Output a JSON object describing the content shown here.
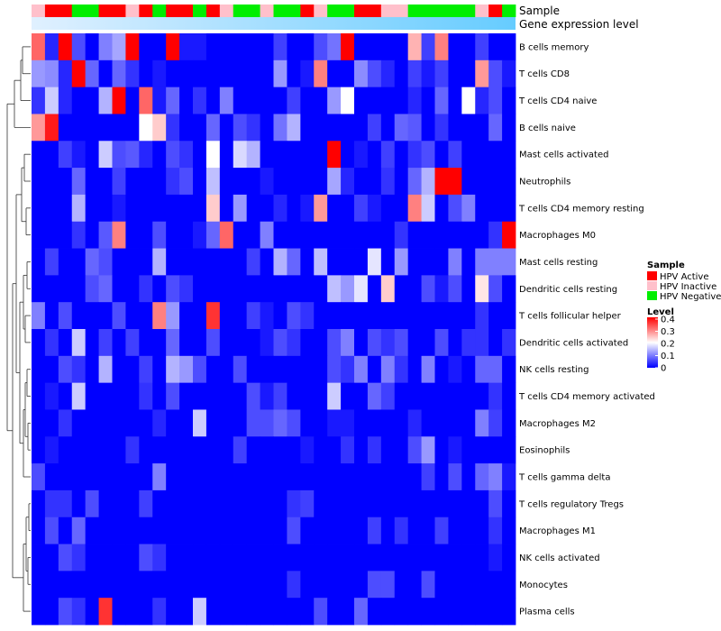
{
  "chart_data": {
    "type": "heatmap",
    "annotation_tracks": [
      "Sample",
      "Gene expression level"
    ],
    "sample_groups": [
      "Inactive",
      "Active",
      "Active",
      "Negative",
      "Negative",
      "Active",
      "Active",
      "Inactive",
      "Active",
      "Negative",
      "Active",
      "Active",
      "Negative",
      "Active",
      "Inactive",
      "Negative",
      "Negative",
      "Inactive",
      "Negative",
      "Negative",
      "Active",
      "Inactive",
      "Negative",
      "Negative",
      "Active",
      "Active",
      "Inactive",
      "Inactive",
      "Negative",
      "Negative",
      "Negative",
      "Negative",
      "Negative",
      "Inactive",
      "Active",
      "Negative"
    ],
    "rows": [
      "B cells memory",
      "T cells CD8",
      "T cells CD4 naive",
      "B cells naive",
      "Mast cells activated",
      "Neutrophils",
      "T cells CD4 memory resting",
      "Macrophages M0",
      "Mast cells resting",
      "Dendritic cells resting",
      "T cells follicular helper",
      "Dendritic cells activated",
      "NK cells resting",
      "T cells CD4 memory activated",
      "Macrophages M2",
      "Eosinophils",
      "T cells gamma delta",
      "T cells regulatory  Tregs",
      "Macrophages M1",
      "NK cells activated",
      "Monocytes",
      "Plasma cells"
    ],
    "values": [
      [
        0.32,
        0.03,
        0.42,
        0.06,
        0.0,
        0.1,
        0.13,
        0.42,
        0.0,
        0.0,
        0.42,
        0.02,
        0.02,
        0.0,
        0.0,
        0.0,
        0.0,
        0.0,
        0.05,
        0.0,
        0.0,
        0.06,
        0.09,
        0.42,
        0.0,
        0.0,
        0.0,
        0.0,
        0.26,
        0.05,
        0.3,
        0.0,
        0.0,
        0.05,
        0.0,
        0.0
      ],
      [
        0.12,
        0.11,
        0.03,
        0.42,
        0.08,
        0.0,
        0.08,
        0.04,
        0.0,
        0.02,
        0.0,
        0.0,
        0.0,
        0.0,
        0.0,
        0.0,
        0.0,
        0.0,
        0.12,
        0.0,
        0.02,
        0.3,
        0.0,
        0.0,
        0.11,
        0.06,
        0.03,
        0.0,
        0.05,
        0.02,
        0.05,
        0.0,
        0.0,
        0.28,
        0.06,
        0.02
      ],
      [
        0.04,
        0.16,
        0.03,
        0.0,
        0.0,
        0.14,
        0.42,
        0.0,
        0.32,
        0.02,
        0.08,
        0.0,
        0.04,
        0.0,
        0.1,
        0.0,
        0.0,
        0.0,
        0.0,
        0.05,
        0.0,
        0.0,
        0.12,
        0.2,
        0.0,
        0.0,
        0.0,
        0.0,
        0.03,
        0.0,
        0.08,
        0.0,
        0.2,
        0.03,
        0.06,
        0.0
      ],
      [
        0.28,
        0.38,
        0.0,
        0.0,
        0.0,
        0.0,
        0.0,
        0.0,
        0.2,
        0.24,
        0.04,
        0.0,
        0.0,
        0.08,
        0.0,
        0.06,
        0.04,
        0.0,
        0.09,
        0.14,
        0.0,
        0.0,
        0.0,
        0.0,
        0.0,
        0.05,
        0.0,
        0.08,
        0.07,
        0.0,
        0.04,
        0.0,
        0.0,
        0.0,
        0.08,
        0.0
      ],
      [
        0.0,
        0.0,
        0.05,
        0.02,
        0.0,
        0.16,
        0.06,
        0.07,
        0.03,
        0.0,
        0.06,
        0.04,
        0.0,
        0.2,
        0.0,
        0.17,
        0.14,
        0.0,
        0.0,
        0.0,
        0.0,
        0.0,
        0.42,
        0.0,
        0.02,
        0.0,
        0.05,
        0.0,
        0.04,
        0.06,
        0.0,
        0.05,
        0.0,
        0.0,
        0.0,
        0.0
      ],
      [
        0.0,
        0.0,
        0.0,
        0.08,
        0.0,
        0.0,
        0.05,
        0.0,
        0.0,
        0.0,
        0.04,
        0.06,
        0.0,
        0.15,
        0.0,
        0.0,
        0.0,
        0.02,
        0.0,
        0.0,
        0.0,
        0.0,
        0.13,
        0.03,
        0.0,
        0.0,
        0.04,
        0.0,
        0.08,
        0.14,
        0.42,
        0.42,
        0.0,
        0.0,
        0.0,
        0.0
      ],
      [
        0.0,
        0.0,
        0.0,
        0.14,
        0.0,
        0.0,
        0.02,
        0.0,
        0.0,
        0.0,
        0.0,
        0.0,
        0.0,
        0.24,
        0.0,
        0.12,
        0.0,
        0.0,
        0.03,
        0.0,
        0.02,
        0.28,
        0.0,
        0.0,
        0.05,
        0.02,
        0.0,
        0.0,
        0.3,
        0.16,
        0.0,
        0.06,
        0.1,
        0.0,
        0.0,
        0.0
      ],
      [
        0.0,
        0.0,
        0.0,
        0.04,
        0.0,
        0.07,
        0.3,
        0.0,
        0.0,
        0.06,
        0.0,
        0.0,
        0.02,
        0.08,
        0.32,
        0.0,
        0.0,
        0.1,
        0.0,
        0.0,
        0.0,
        0.0,
        0.0,
        0.0,
        0.0,
        0.0,
        0.0,
        0.04,
        0.0,
        0.0,
        0.0,
        0.0,
        0.0,
        0.0,
        0.04,
        0.4
      ],
      [
        0.0,
        0.05,
        0.0,
        0.0,
        0.08,
        0.06,
        0.0,
        0.0,
        0.0,
        0.14,
        0.0,
        0.0,
        0.0,
        0.0,
        0.0,
        0.0,
        0.05,
        0.0,
        0.14,
        0.08,
        0.0,
        0.15,
        0.0,
        0.0,
        0.0,
        0.18,
        0.0,
        0.12,
        0.0,
        0.0,
        0.0,
        0.1,
        0.0,
        0.1,
        0.1,
        0.1
      ],
      [
        0.0,
        0.0,
        0.0,
        0.0,
        0.06,
        0.08,
        0.0,
        0.0,
        0.04,
        0.0,
        0.06,
        0.04,
        0.0,
        0.0,
        0.0,
        0.0,
        0.0,
        0.0,
        0.0,
        0.0,
        0.0,
        0.0,
        0.15,
        0.12,
        0.18,
        0.0,
        0.24,
        0.0,
        0.0,
        0.06,
        0.02,
        0.06,
        0.0,
        0.22,
        0.06,
        0.0
      ],
      [
        0.1,
        0.0,
        0.06,
        0.0,
        0.0,
        0.0,
        0.06,
        0.0,
        0.0,
        0.3,
        0.12,
        0.0,
        0.0,
        0.36,
        0.0,
        0.0,
        0.05,
        0.02,
        0.0,
        0.06,
        0.04,
        0.0,
        0.0,
        0.0,
        0.0,
        0.0,
        0.0,
        0.0,
        0.0,
        0.0,
        0.0,
        0.0,
        0.0,
        0.04,
        0.0,
        0.0
      ],
      [
        0.0,
        0.04,
        0.0,
        0.16,
        0.0,
        0.05,
        0.0,
        0.05,
        0.0,
        0.0,
        0.08,
        0.0,
        0.0,
        0.06,
        0.0,
        0.0,
        0.0,
        0.02,
        0.06,
        0.04,
        0.0,
        0.0,
        0.06,
        0.1,
        0.0,
        0.06,
        0.04,
        0.06,
        0.0,
        0.0,
        0.06,
        0.0,
        0.04,
        0.04,
        0.0,
        0.04
      ],
      [
        0.0,
        0.0,
        0.06,
        0.04,
        0.0,
        0.14,
        0.0,
        0.0,
        0.05,
        0.0,
        0.14,
        0.12,
        0.06,
        0.0,
        0.0,
        0.06,
        0.0,
        0.0,
        0.0,
        0.0,
        0.0,
        0.0,
        0.06,
        0.04,
        0.1,
        0.0,
        0.1,
        0.04,
        0.0,
        0.1,
        0.0,
        0.02,
        0.0,
        0.08,
        0.08,
        0.0
      ],
      [
        0.0,
        0.02,
        0.0,
        0.16,
        0.0,
        0.0,
        0.0,
        0.0,
        0.04,
        0.0,
        0.06,
        0.0,
        0.0,
        0.0,
        0.0,
        0.0,
        0.06,
        0.02,
        0.05,
        0.0,
        0.0,
        0.0,
        0.16,
        0.0,
        0.0,
        0.08,
        0.05,
        0.0,
        0.0,
        0.0,
        0.0,
        0.0,
        0.0,
        0.0,
        0.04,
        0.0
      ],
      [
        0.0,
        0.0,
        0.04,
        0.0,
        0.0,
        0.0,
        0.0,
        0.0,
        0.0,
        0.03,
        0.0,
        0.0,
        0.16,
        0.0,
        0.0,
        0.0,
        0.06,
        0.06,
        0.08,
        0.06,
        0.0,
        0.0,
        0.02,
        0.02,
        0.0,
        0.0,
        0.0,
        0.0,
        0.03,
        0.0,
        0.0,
        0.0,
        0.0,
        0.1,
        0.05,
        0.0
      ],
      [
        0.0,
        0.02,
        0.0,
        0.0,
        0.0,
        0.0,
        0.0,
        0.04,
        0.0,
        0.0,
        0.0,
        0.0,
        0.0,
        0.0,
        0.0,
        0.05,
        0.0,
        0.0,
        0.0,
        0.0,
        0.02,
        0.0,
        0.0,
        0.04,
        0.0,
        0.04,
        0.0,
        0.0,
        0.06,
        0.12,
        0.0,
        0.02,
        0.0,
        0.0,
        0.0,
        0.0
      ],
      [
        0.06,
        0.0,
        0.0,
        0.0,
        0.0,
        0.0,
        0.0,
        0.0,
        0.0,
        0.1,
        0.0,
        0.0,
        0.0,
        0.0,
        0.0,
        0.0,
        0.0,
        0.0,
        0.0,
        0.0,
        0.0,
        0.0,
        0.0,
        0.0,
        0.0,
        0.0,
        0.0,
        0.0,
        0.0,
        0.05,
        0.0,
        0.06,
        0.0,
        0.08,
        0.1,
        0.02
      ],
      [
        0.0,
        0.04,
        0.04,
        0.0,
        0.06,
        0.0,
        0.0,
        0.0,
        0.05,
        0.0,
        0.0,
        0.0,
        0.0,
        0.0,
        0.0,
        0.0,
        0.0,
        0.0,
        0.0,
        0.04,
        0.05,
        0.0,
        0.0,
        0.0,
        0.0,
        0.0,
        0.0,
        0.0,
        0.0,
        0.0,
        0.0,
        0.0,
        0.0,
        0.0,
        0.06,
        0.0
      ],
      [
        0.0,
        0.06,
        0.0,
        0.08,
        0.0,
        0.0,
        0.0,
        0.0,
        0.0,
        0.0,
        0.0,
        0.0,
        0.0,
        0.0,
        0.0,
        0.0,
        0.0,
        0.0,
        0.0,
        0.06,
        0.0,
        0.0,
        0.0,
        0.0,
        0.0,
        0.05,
        0.0,
        0.04,
        0.0,
        0.0,
        0.05,
        0.0,
        0.0,
        0.0,
        0.04,
        0.0
      ],
      [
        0.0,
        0.0,
        0.06,
        0.04,
        0.0,
        0.0,
        0.0,
        0.0,
        0.06,
        0.04,
        0.0,
        0.0,
        0.0,
        0.0,
        0.0,
        0.0,
        0.0,
        0.0,
        0.0,
        0.0,
        0.0,
        0.0,
        0.0,
        0.0,
        0.0,
        0.0,
        0.0,
        0.0,
        0.0,
        0.0,
        0.0,
        0.0,
        0.0,
        0.0,
        0.02,
        0.0
      ],
      [
        0.0,
        0.0,
        0.0,
        0.0,
        0.0,
        0.0,
        0.0,
        0.0,
        0.0,
        0.0,
        0.0,
        0.0,
        0.0,
        0.0,
        0.0,
        0.0,
        0.0,
        0.0,
        0.0,
        0.04,
        0.0,
        0.0,
        0.0,
        0.0,
        0.0,
        0.06,
        0.06,
        0.0,
        0.0,
        0.06,
        0.0,
        0.0,
        0.0,
        0.0,
        0.0,
        0.0
      ],
      [
        0.0,
        0.0,
        0.06,
        0.04,
        0.0,
        0.36,
        0.0,
        0.0,
        0.0,
        0.04,
        0.0,
        0.0,
        0.16,
        0.0,
        0.0,
        0.0,
        0.0,
        0.0,
        0.0,
        0.0,
        0.0,
        0.06,
        0.0,
        0.0,
        0.08,
        0.0,
        0.0,
        0.0,
        0.0,
        0.0,
        0.0,
        0.0,
        0.0,
        0.0,
        0.0,
        0.0
      ]
    ],
    "legend": {
      "sample_title": "Sample",
      "sample_items": [
        {
          "label": "HPV Active",
          "color": "#ff0000"
        },
        {
          "label": "HPV Inactive",
          "color": "#ffc0cb"
        },
        {
          "label": "HPV Negative",
          "color": "#00ee00"
        }
      ],
      "level_title": "Level",
      "level_ticks": [
        "0.4",
        "0.3",
        "0.2",
        "0.1",
        "0"
      ],
      "color_scale": {
        "min": 0,
        "mid": 0.2,
        "max": 0.4,
        "low": "#0000ff",
        "midcolor": "#ffffff",
        "high": "#ff0000"
      },
      "placement": "right"
    },
    "gene_expression_gradient": {
      "from": "#e0f0ff",
      "to": "#66ccff"
    }
  }
}
